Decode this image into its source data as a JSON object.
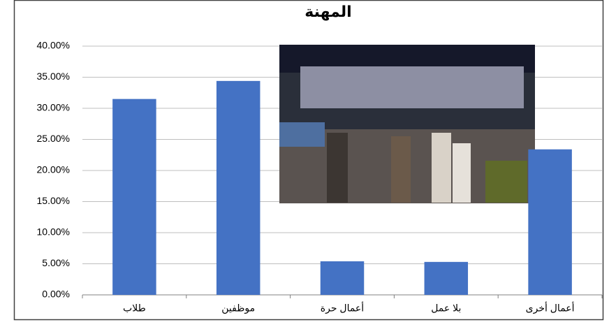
{
  "chart_data": {
    "type": "bar",
    "title": "المهنة",
    "categories": [
      "طلاب",
      "موظفين",
      "أعمال حرة",
      "بلا عمل",
      "أعمال أخرى"
    ],
    "values": [
      31.5,
      34.4,
      5.4,
      5.3,
      23.4
    ],
    "color": "#4472c4",
    "ylim": [
      0,
      40
    ],
    "yticks": [
      {
        "value": 0,
        "label": "0.00%"
      },
      {
        "value": 5,
        "label": "5.00%"
      },
      {
        "value": 10,
        "label": "10.00%"
      },
      {
        "value": 15,
        "label": "15.00%"
      },
      {
        "value": 20,
        "label": "20.00%"
      },
      {
        "value": 25,
        "label": "25.00%"
      },
      {
        "value": 30,
        "label": "30.00%"
      },
      {
        "value": 35,
        "label": "35.00%"
      },
      {
        "value": 40,
        "label": "40.00%"
      }
    ],
    "grid": true
  }
}
